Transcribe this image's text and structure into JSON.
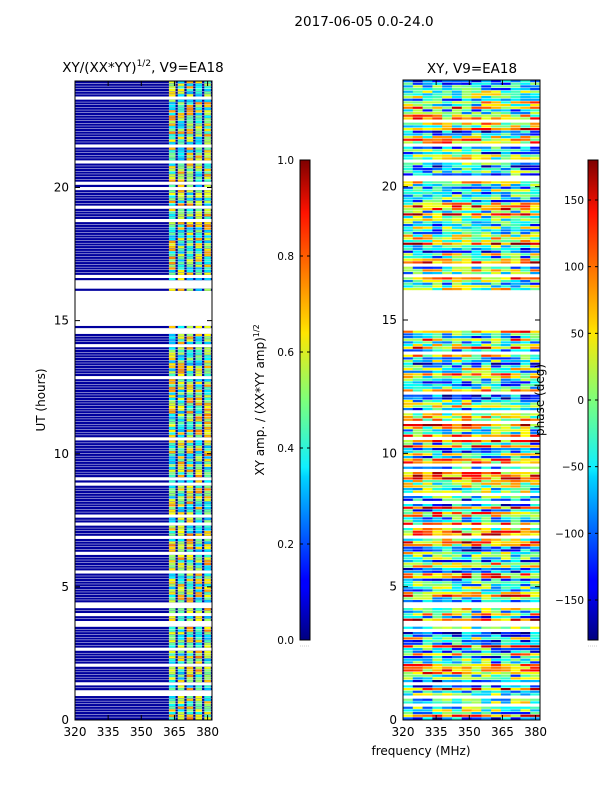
{
  "figure": {
    "suptitle": "2017-06-05 0.0-24.0",
    "xlabel": "frequency (MHz)"
  },
  "chart_data": [
    {
      "type": "heatmap",
      "title_main": "XY/(XX*YY)",
      "title_exp": "1/2",
      "title_tail": ", V9=EA18",
      "xlabel": "",
      "ylabel": "UT (hours)",
      "xlim": [
        320,
        382
      ],
      "ylim": [
        0,
        24
      ],
      "xticks": [
        320,
        335,
        350,
        365,
        380
      ],
      "yticks": [
        0,
        5,
        10,
        15,
        20
      ],
      "colorbar": {
        "label_main": "XY amp. / (XX*YY amp)",
        "label_exp": "1/2",
        "range": [
          0.0,
          1.0
        ],
        "ticks": [
          "0.0",
          "0.2",
          "0.4",
          "0.6",
          "0.8",
          "1.0"
        ],
        "tick_values": [
          0.0,
          0.2,
          0.4,
          0.6,
          0.8,
          1.0
        ]
      },
      "data_gaps_hours": [
        [
          14.8,
          16.05
        ],
        [
          3.5,
          3.65
        ],
        [
          4.15,
          4.3
        ],
        [
          1.25,
          1.4
        ],
        [
          0.9,
          1.0
        ]
      ],
      "hot_channels_mhz": [
        364,
        368,
        372,
        376,
        380
      ],
      "baseline_value": 0.0,
      "channel_value_range": [
        0.3,
        0.75
      ]
    },
    {
      "type": "heatmap",
      "title": "XY, V9=EA18",
      "xlabel": "",
      "ylabel": "",
      "xlim": [
        320,
        382
      ],
      "ylim": [
        0,
        24
      ],
      "xticks": [
        320,
        335,
        350,
        365,
        380
      ],
      "yticks": [
        0,
        5,
        10,
        15,
        20
      ],
      "colorbar": {
        "label": "phase (deg)",
        "range": [
          -180,
          180
        ],
        "ticks": [
          "−150",
          "−100",
          "−50",
          "0",
          "50",
          "100",
          "150"
        ],
        "tick_values": [
          -150,
          -100,
          -50,
          0,
          50,
          100,
          150
        ]
      },
      "data_gaps_hours": [
        [
          14.8,
          16.05
        ],
        [
          3.5,
          3.65
        ],
        [
          4.15,
          4.3
        ],
        [
          1.25,
          1.4
        ]
      ],
      "phase_range_deg": [
        -180,
        180
      ]
    }
  ]
}
